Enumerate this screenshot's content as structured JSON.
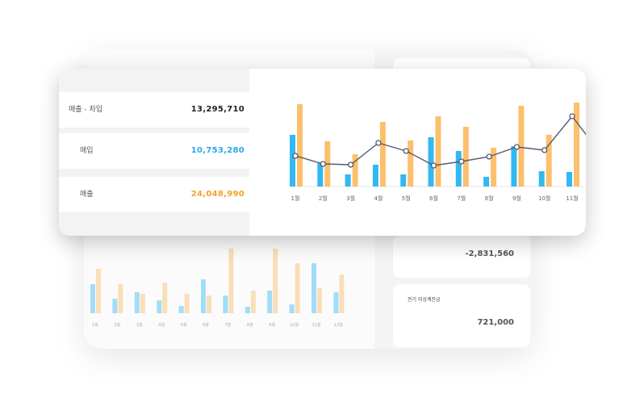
{
  "colors": {
    "income": "#32b8f2",
    "expense": "#fbb552",
    "line": "#555a6e",
    "accent_text_blue": "#27a9e8",
    "accent_text_orange": "#f4a12b"
  },
  "summary": {
    "rows": [
      {
        "label": "매출 - 차입",
        "value": "13,295,710",
        "color": "#222222"
      },
      {
        "label": "매입",
        "value": "10,753,280",
        "color": "#27a9e8"
      },
      {
        "label": "매출",
        "value": "24,048,990",
        "color": "#f4a12b"
      }
    ]
  },
  "front_chart": {
    "categories": [
      "1월",
      "2월",
      "3월",
      "4월",
      "5월",
      "6월",
      "7월",
      "8월",
      "9월",
      "10월",
      "11월",
      "12월"
    ],
    "series": [
      {
        "key": "income",
        "values": [
          64,
          29,
          15,
          27,
          15,
          61,
          44,
          12,
          50,
          19,
          18,
          44
        ]
      },
      {
        "key": "expense",
        "values": [
          102,
          56,
          40,
          80,
          57,
          87,
          74,
          48,
          100,
          64,
          104,
          86
        ]
      },
      {
        "key": "line",
        "values": [
          38,
          28,
          27,
          54,
          44,
          26,
          31,
          37,
          49,
          45,
          87,
          42
        ]
      }
    ]
  },
  "back_chart": {
    "categories": [
      "1월",
      "2월",
      "3월",
      "4월",
      "5월",
      "6월",
      "7월",
      "8월",
      "9월",
      "10월",
      "11월",
      "12월"
    ],
    "series": [
      {
        "key": "income",
        "values": [
          36,
          18,
          26,
          16,
          9,
          42,
          22,
          8,
          28,
          11,
          62,
          26
        ]
      },
      {
        "key": "expense",
        "values": [
          55,
          36,
          24,
          38,
          24,
          22,
          80,
          28,
          80,
          62,
          31,
          48
        ]
      }
    ]
  },
  "back_tiles": {
    "tile1_value": "-2,831,560",
    "tile2_label": "전기 미상계잔금",
    "tile2_value": "721,000"
  }
}
